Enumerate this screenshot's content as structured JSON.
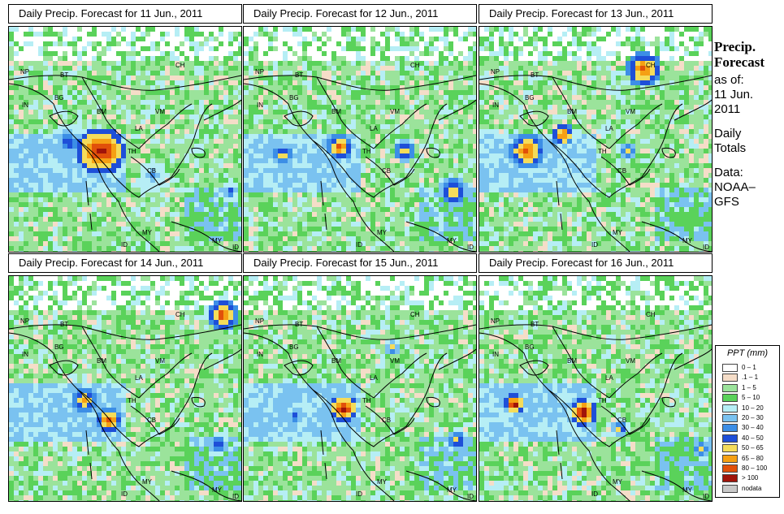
{
  "panels": [
    {
      "title": "Daily Precip. Forecast for  11 Jun., 2011"
    },
    {
      "title": "Daily Precip. Forecast for  12 Jun., 2011"
    },
    {
      "title": "Daily Precip. Forecast for  13 Jun., 2011"
    },
    {
      "title": "Daily Precip. Forecast for  14 Jun., 2011"
    },
    {
      "title": "Daily Precip. Forecast for  15 Jun., 2011"
    },
    {
      "title": "Daily Precip. Forecast for  16 Jun., 2011"
    }
  ],
  "map_labels": {
    "NP": "NP",
    "BT": "BT",
    "IN": "IN",
    "BG": "BG",
    "BM": "BM",
    "CH": "CH",
    "VM": "VM",
    "LA": "LA",
    "TH": "TH",
    "CB": "CB",
    "MY": "MY",
    "ID": "ID"
  },
  "sidebar": {
    "heading1": "Precip.",
    "heading2": "Forecast",
    "asof_label": "as of:",
    "date1": "11 Jun.",
    "date2": "2011",
    "daily1": "Daily",
    "daily2": "Totals",
    "data1": "Data:",
    "data2": "NOAA–",
    "data3": "GFS"
  },
  "legend": {
    "title": "PPT (mm)",
    "items": [
      {
        "label": "0 – 1",
        "color": "#ffffff"
      },
      {
        "label": ".1 – 1",
        "color": "#f5ddc8"
      },
      {
        "label": "1 – 5",
        "color": "#9be39b"
      },
      {
        "label": "5 – 10",
        "color": "#5ad25a"
      },
      {
        "label": "10 – 20",
        "color": "#b6eef5"
      },
      {
        "label": "20 – 30",
        "color": "#7ac2f0"
      },
      {
        "label": "30 – 40",
        "color": "#3c8ee6"
      },
      {
        "label": "40 – 50",
        "color": "#1e4fd8"
      },
      {
        "label": "50 – 65",
        "color": "#f5dc5a"
      },
      {
        "label": "65 – 80",
        "color": "#f5a014"
      },
      {
        "label": "80 – 100",
        "color": "#e1500a"
      },
      {
        "label": "> 100",
        "color": "#a0140a"
      },
      {
        "label": "nodata",
        "color": "#c8c8c8"
      }
    ]
  },
  "colors": {
    "border": "#000000",
    "coast": "#000000"
  }
}
